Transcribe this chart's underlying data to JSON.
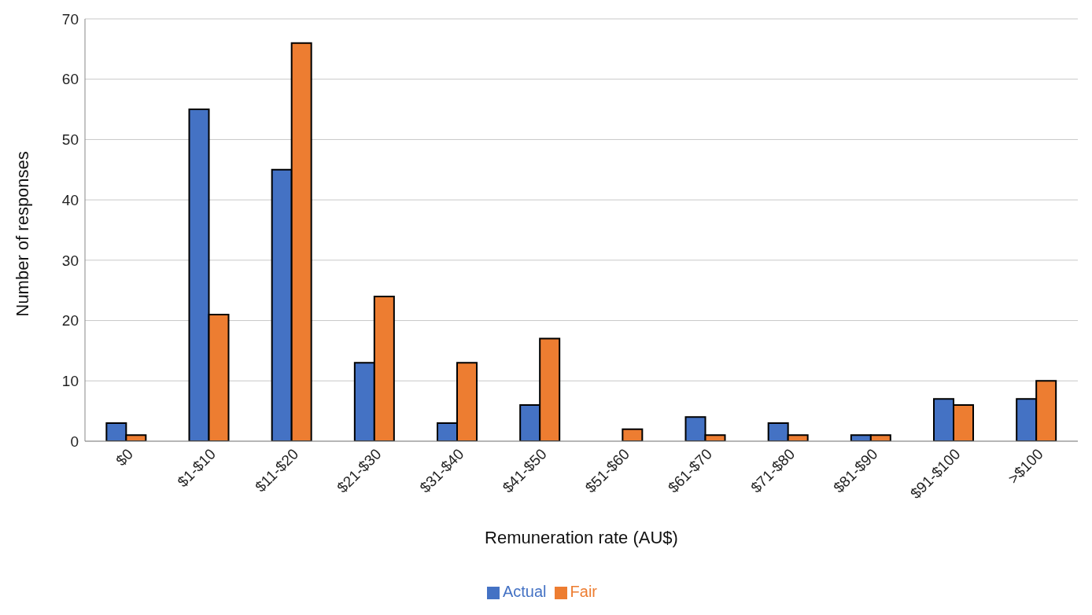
{
  "chart_data": {
    "type": "bar",
    "xlabel": "Remuneration rate (AU$)",
    "ylabel": "Number of responses",
    "categories": [
      "$0",
      "$1-$10",
      "$11-$20",
      "$21-$30",
      "$31-$40",
      "$41-$50",
      "$51-$60",
      "$61-$70",
      "$71-$80",
      "$81-$90",
      "$91-$100",
      ">$100"
    ],
    "series": [
      {
        "name": "Actual",
        "color": "#4472c4",
        "values": [
          3,
          55,
          45,
          13,
          3,
          6,
          0,
          4,
          3,
          1,
          7,
          7
        ]
      },
      {
        "name": "Fair",
        "color": "#ed7d31",
        "values": [
          1,
          21,
          66,
          24,
          13,
          17,
          2,
          1,
          1,
          1,
          6,
          10
        ]
      }
    ],
    "ylim": [
      0,
      70
    ],
    "yticks": [
      0,
      10,
      20,
      30,
      40,
      50,
      60,
      70
    ],
    "grid": "y",
    "legend": "bottom"
  }
}
